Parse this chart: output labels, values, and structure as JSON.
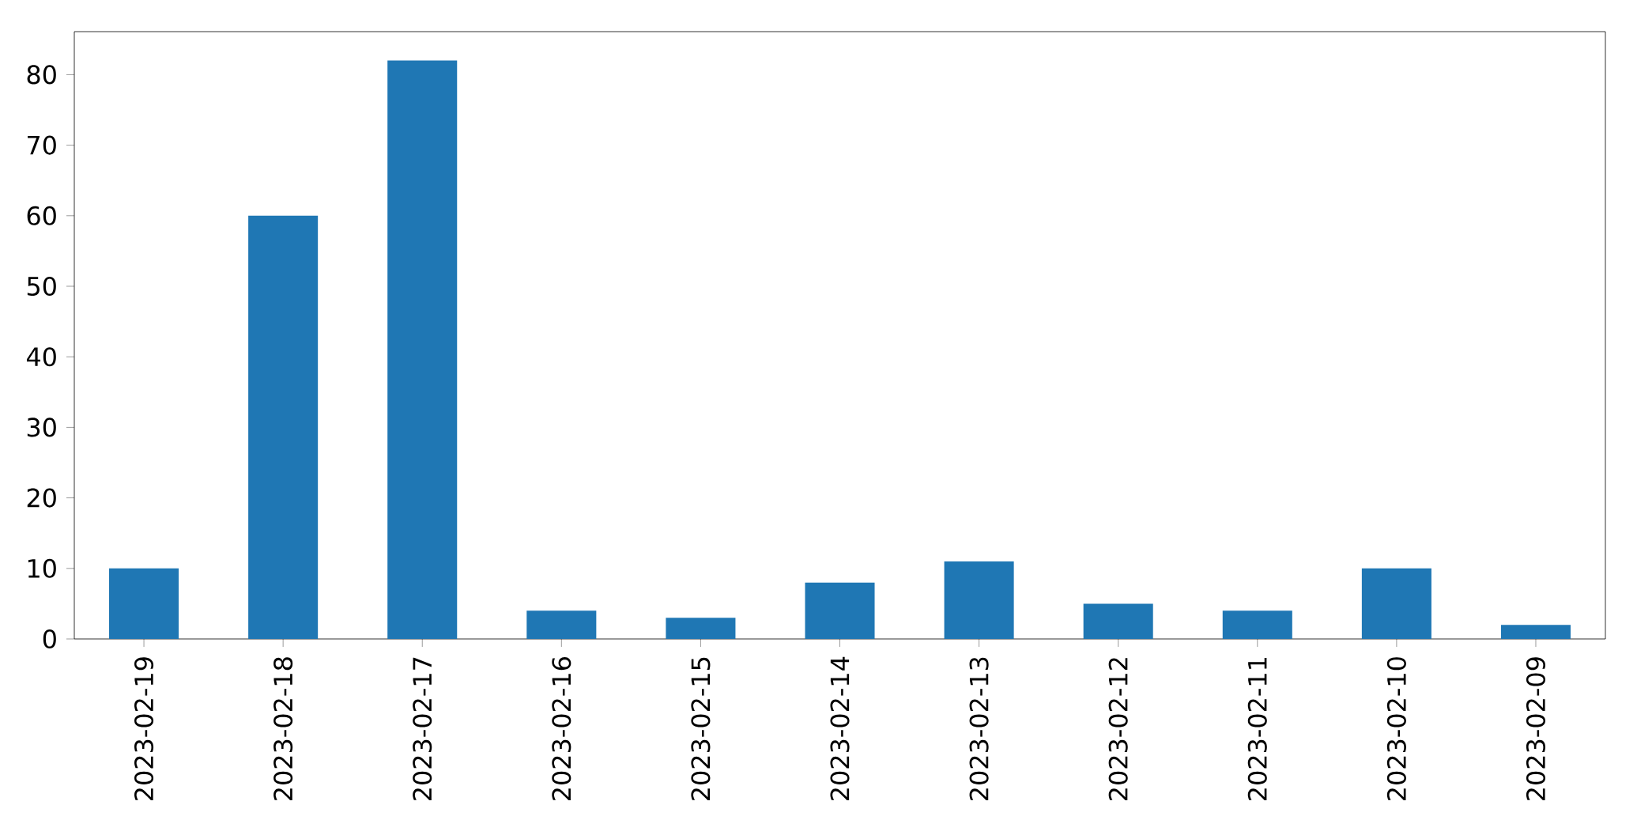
{
  "chart_data": {
    "type": "bar",
    "categories": [
      "2023-02-19",
      "2023-02-18",
      "2023-02-17",
      "2023-02-16",
      "2023-02-15",
      "2023-02-14",
      "2023-02-13",
      "2023-02-12",
      "2023-02-11",
      "2023-02-10",
      "2023-02-09"
    ],
    "values": [
      10,
      60,
      82,
      4,
      3,
      8,
      11,
      5,
      4,
      10,
      2
    ],
    "color": "#1f77b4",
    "ylim": [
      0,
      86.1
    ],
    "yticks": [
      0,
      10,
      20,
      30,
      40,
      50,
      60,
      70,
      80
    ],
    "grid": false
  }
}
